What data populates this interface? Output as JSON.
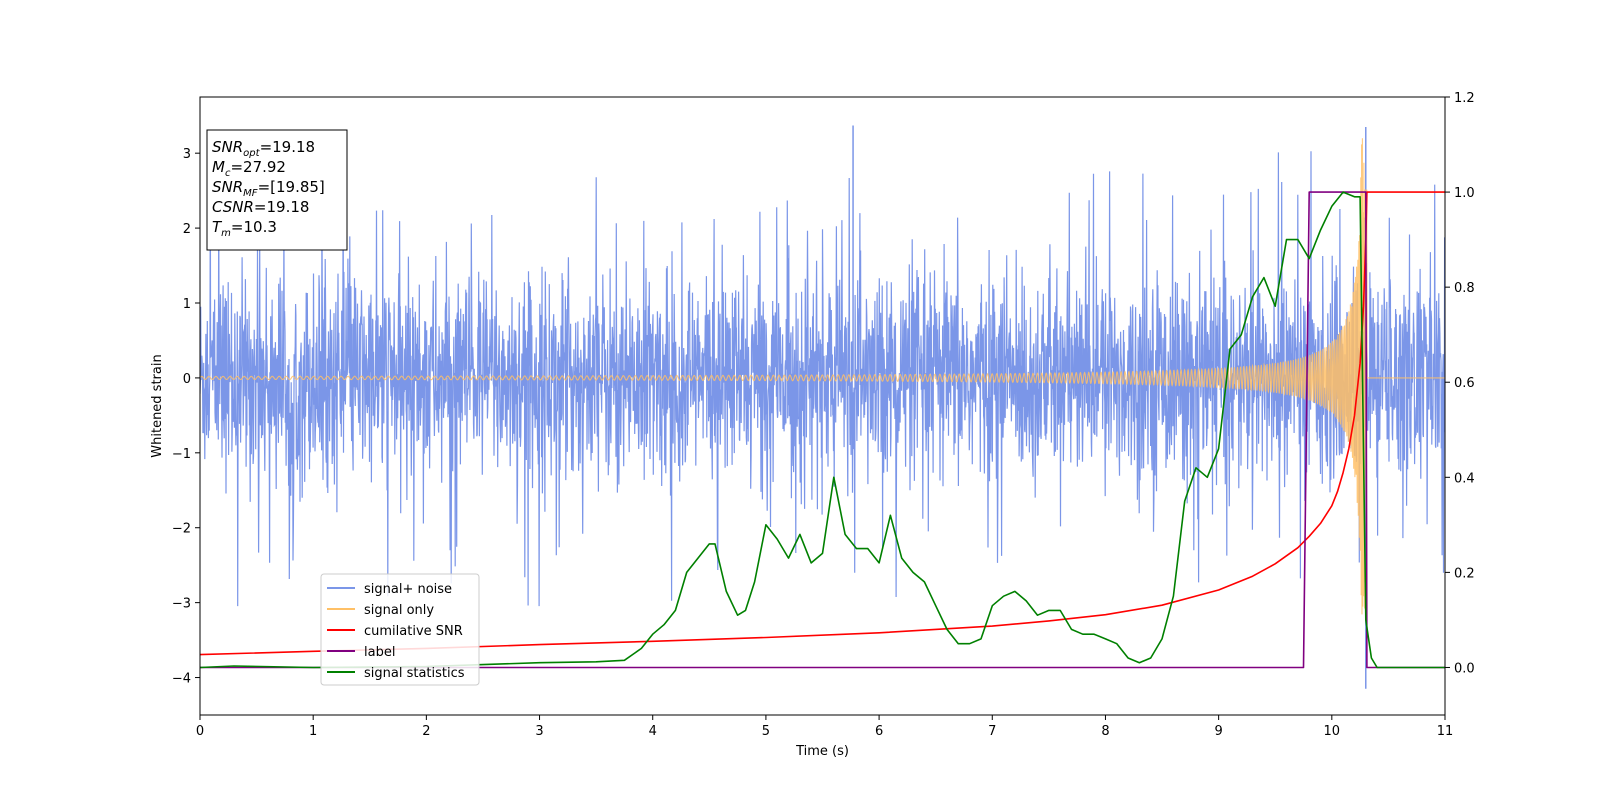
{
  "chart_data": {
    "type": "line",
    "xlabel": "Time (s)",
    "ylabel_left": "Whitened strain",
    "ylabel_right": "",
    "xlim": [
      0,
      11
    ],
    "ylim_left": [
      -4.5,
      3.75
    ],
    "ylim_right": [
      -0.1,
      1.2
    ],
    "x_ticks": [
      0,
      1,
      2,
      3,
      4,
      5,
      6,
      7,
      8,
      9,
      10,
      11
    ],
    "y_left_ticks": [
      -4,
      -3,
      -2,
      -1,
      0,
      1,
      2,
      3
    ],
    "y_right_ticks": [
      0.0,
      0.2,
      0.4,
      0.6,
      0.8,
      1.0,
      1.2
    ],
    "grid": false,
    "legend_position": "lower-left",
    "annotation": {
      "lines": [
        {
          "base": "SNR",
          "sub": "opt",
          "value": "=19.18"
        },
        {
          "base": "M",
          "sub": "c",
          "value": "=27.92"
        },
        {
          "base": "SNR",
          "sub": "MF",
          "value": "=[19.85]"
        },
        {
          "base": "CSNR",
          "sub": "",
          "value": "=19.18"
        },
        {
          "base": "T",
          "sub": "m",
          "value": "=10.3"
        }
      ]
    },
    "series": [
      {
        "name": "signal+ noise",
        "axis": "left",
        "color": "#7b96e8",
        "kind": "noise_band",
        "typical_amplitude": 1.1,
        "extreme_min": -4.15,
        "extreme_max": 3.35
      },
      {
        "name": "signal only",
        "axis": "left",
        "color": "#ffc066",
        "kind": "chirp",
        "start_amplitude": 0.02,
        "peak_time": 10.3,
        "peak_amplitude": 3.2
      },
      {
        "name": "cumilative SNR",
        "axis": "right",
        "color": "#ff0000",
        "x": [
          0,
          1,
          2,
          3,
          4,
          5,
          6,
          7,
          7.5,
          8,
          8.5,
          9,
          9.3,
          9.5,
          9.7,
          9.8,
          9.9,
          10.0,
          10.05,
          10.1,
          10.15,
          10.2,
          10.25,
          10.28,
          10.3,
          10.31,
          11
        ],
        "y": [
          0.027,
          0.034,
          0.04,
          0.048,
          0.055,
          0.063,
          0.073,
          0.087,
          0.098,
          0.111,
          0.131,
          0.163,
          0.192,
          0.218,
          0.252,
          0.276,
          0.303,
          0.34,
          0.37,
          0.41,
          0.46,
          0.53,
          0.64,
          0.76,
          0.9,
          1.0,
          1.0
        ]
      },
      {
        "name": "label",
        "axis": "right",
        "color": "#800080",
        "x": [
          0,
          9.75,
          9.8,
          10.3,
          10.31,
          11
        ],
        "y": [
          0.0,
          0.0,
          1.0,
          1.0,
          0.0,
          0.0
        ]
      },
      {
        "name": "signal statistics",
        "axis": "right",
        "color": "#008000",
        "x": [
          0,
          0.3,
          1,
          2,
          2.5,
          3,
          3.5,
          3.75,
          3.9,
          4.0,
          4.1,
          4.2,
          4.3,
          4.4,
          4.5,
          4.55,
          4.65,
          4.75,
          4.82,
          4.9,
          5.0,
          5.1,
          5.2,
          5.3,
          5.4,
          5.5,
          5.6,
          5.7,
          5.8,
          5.9,
          6.0,
          6.1,
          6.2,
          6.3,
          6.4,
          6.5,
          6.6,
          6.7,
          6.8,
          6.9,
          7.0,
          7.1,
          7.2,
          7.3,
          7.4,
          7.5,
          7.6,
          7.7,
          7.8,
          7.9,
          8.0,
          8.1,
          8.2,
          8.3,
          8.4,
          8.5,
          8.6,
          8.7,
          8.8,
          8.9,
          9.0,
          9.1,
          9.2,
          9.3,
          9.4,
          9.5,
          9.6,
          9.7,
          9.8,
          9.9,
          10.0,
          10.1,
          10.2,
          10.25,
          10.3,
          10.35,
          10.4,
          10.5,
          11
        ],
        "y": [
          0.0,
          0.003,
          0.0,
          0.002,
          0.006,
          0.01,
          0.012,
          0.015,
          0.04,
          0.07,
          0.09,
          0.12,
          0.2,
          0.23,
          0.26,
          0.26,
          0.16,
          0.11,
          0.12,
          0.18,
          0.3,
          0.27,
          0.23,
          0.28,
          0.22,
          0.24,
          0.4,
          0.28,
          0.25,
          0.25,
          0.22,
          0.32,
          0.23,
          0.2,
          0.18,
          0.13,
          0.08,
          0.05,
          0.05,
          0.06,
          0.13,
          0.15,
          0.16,
          0.14,
          0.11,
          0.12,
          0.12,
          0.08,
          0.07,
          0.07,
          0.06,
          0.05,
          0.02,
          0.01,
          0.02,
          0.06,
          0.15,
          0.35,
          0.42,
          0.4,
          0.46,
          0.67,
          0.7,
          0.78,
          0.82,
          0.76,
          0.9,
          0.9,
          0.86,
          0.92,
          0.97,
          1.0,
          0.99,
          0.99,
          0.1,
          0.02,
          0.0,
          0.0,
          0.0
        ]
      }
    ]
  }
}
